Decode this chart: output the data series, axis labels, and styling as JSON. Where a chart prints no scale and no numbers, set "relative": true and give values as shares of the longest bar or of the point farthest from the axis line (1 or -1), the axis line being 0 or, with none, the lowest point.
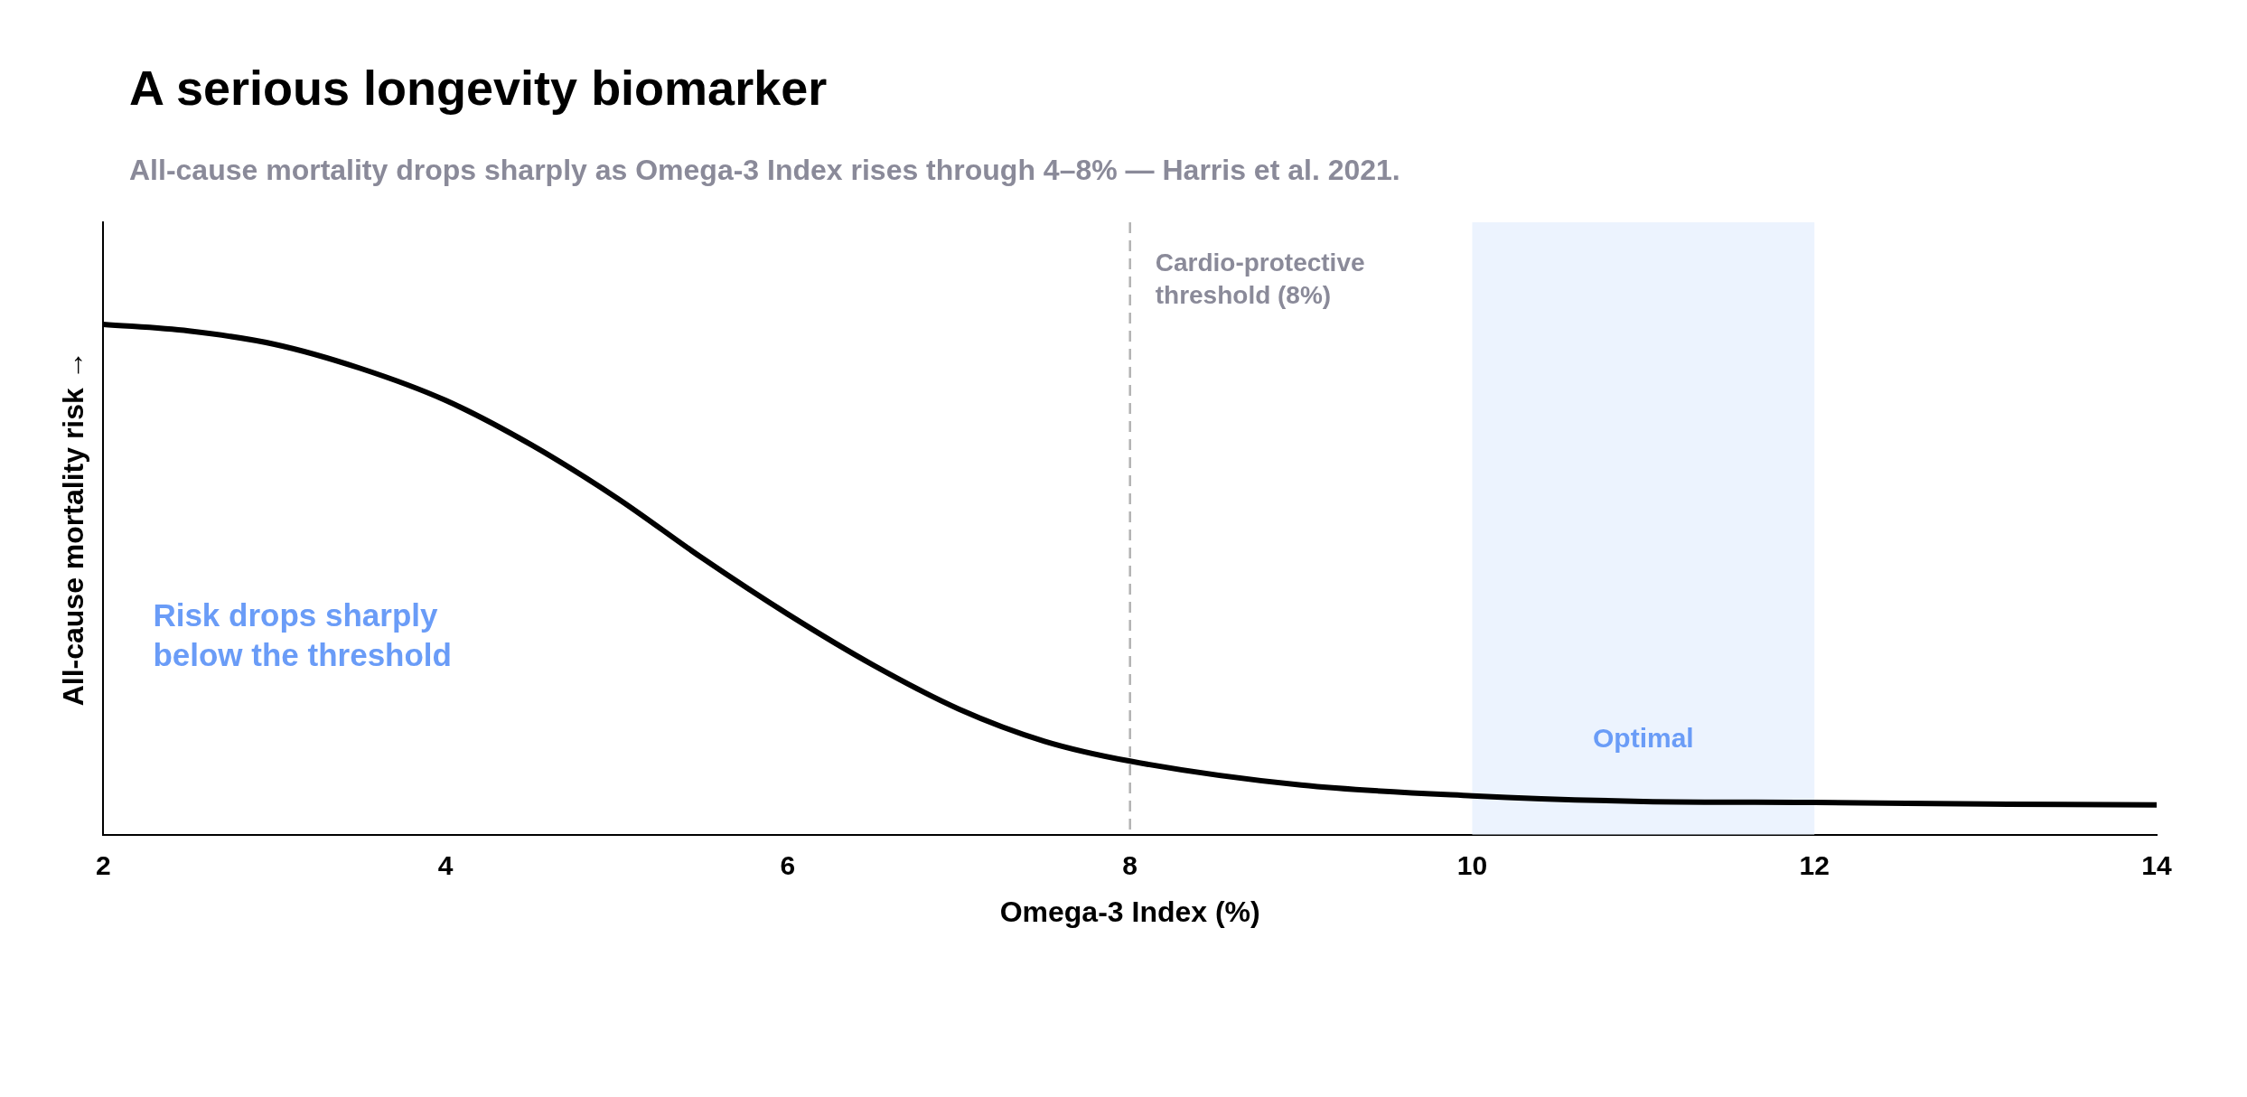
{
  "chart_data": {
    "type": "line",
    "title": "A serious longevity biomarker",
    "subtitle": "All-cause mortality drops sharply as Omega-3 Index rises through 4–8% — Harris et al. 2021.",
    "xlabel": "Omega-3 Index (%)",
    "ylabel": "All-cause mortality risk →",
    "relative": true,
    "x": [
      2,
      2.5,
      3,
      3.5,
      4,
      4.5,
      5,
      5.5,
      6,
      6.5,
      7,
      7.5,
      8,
      9,
      10,
      11,
      12,
      13,
      14
    ],
    "values": [
      1.0,
      0.987,
      0.961,
      0.914,
      0.851,
      0.764,
      0.66,
      0.542,
      0.432,
      0.332,
      0.246,
      0.183,
      0.144,
      0.097,
      0.076,
      0.065,
      0.063,
      0.06,
      0.058
    ],
    "color": "#000000",
    "marker": "none",
    "line_style": "solid",
    "grid": false,
    "legend": false,
    "xlim": [
      2,
      14
    ],
    "xticks": [
      2,
      4,
      6,
      8,
      10,
      12,
      14
    ],
    "ref_lines": [
      {
        "axis": "x",
        "value": 8,
        "label": "Cardio-protective threshold (8%)",
        "color": "#b3b3b3",
        "line_style": "dashed"
      }
    ],
    "bands": [
      {
        "axis": "x",
        "from": 10,
        "to": 12,
        "label": "Optimal",
        "color": "#ecf3fe"
      }
    ],
    "annotations": [
      "Risk drops sharply below the threshold"
    ]
  }
}
